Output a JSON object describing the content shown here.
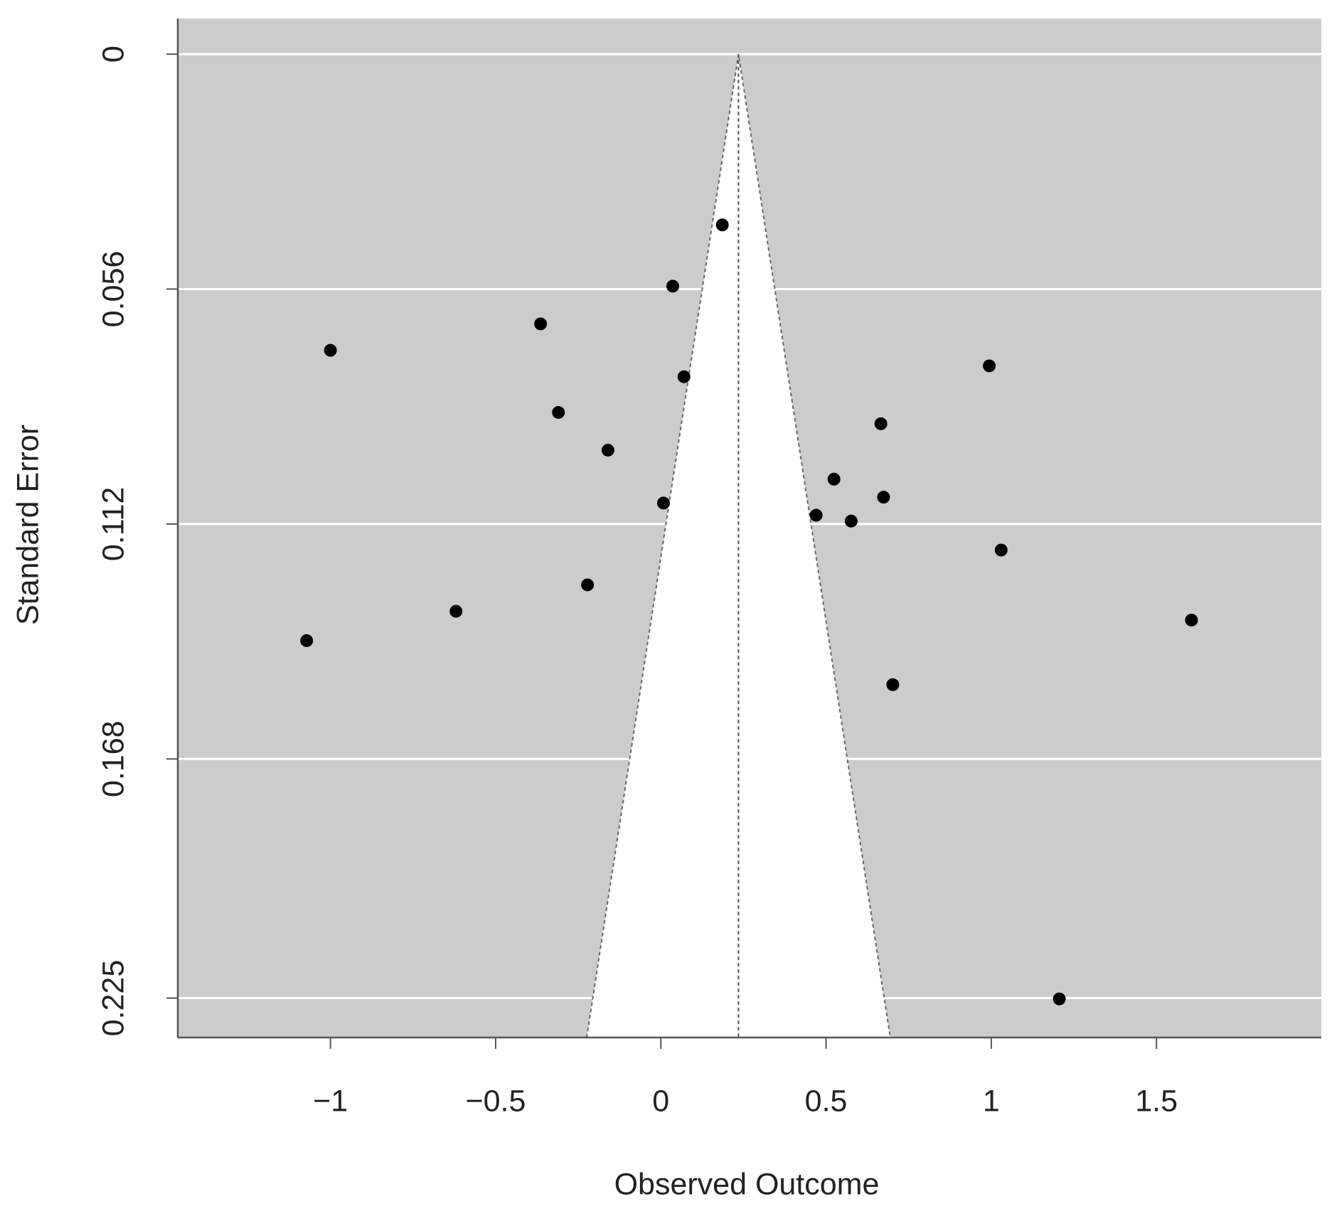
{
  "chart_data": {
    "type": "funnel",
    "xlabel": "Observed Outcome",
    "ylabel": "Standard Error",
    "xlim": [
      -1.462,
      1.999
    ],
    "ylim": [
      -0.0085,
      0.2344
    ],
    "y_reversed": true,
    "xticks": [
      {
        "value": -1,
        "label": "−1"
      },
      {
        "value": -0.5,
        "label": "−0.5"
      },
      0,
      0.5,
      1,
      1.5
    ],
    "yticks": [
      0,
      0.056,
      0.112,
      0.168,
      0.225
    ],
    "grid": true,
    "background": "#cccccc",
    "estimate": 0.235,
    "z": 1.96,
    "color": "#000000",
    "x": [
      0.186,
      0.036,
      -0.364,
      -1.0,
      0.07,
      -0.31,
      -0.16,
      0.008,
      -0.222,
      -0.62,
      -1.072,
      0.994,
      0.666,
      0.524,
      0.47,
      0.576,
      0.674,
      1.03,
      1.606,
      0.702,
      1.206
    ],
    "y": [
      0.0407,
      0.0553,
      0.0643,
      0.0706,
      0.0769,
      0.0854,
      0.0944,
      0.107,
      0.1265,
      0.1328,
      0.1398,
      0.0743,
      0.0881,
      0.1013,
      0.1099,
      0.1113,
      0.1056,
      0.1182,
      0.1349,
      0.1503,
      0.2252
    ]
  }
}
